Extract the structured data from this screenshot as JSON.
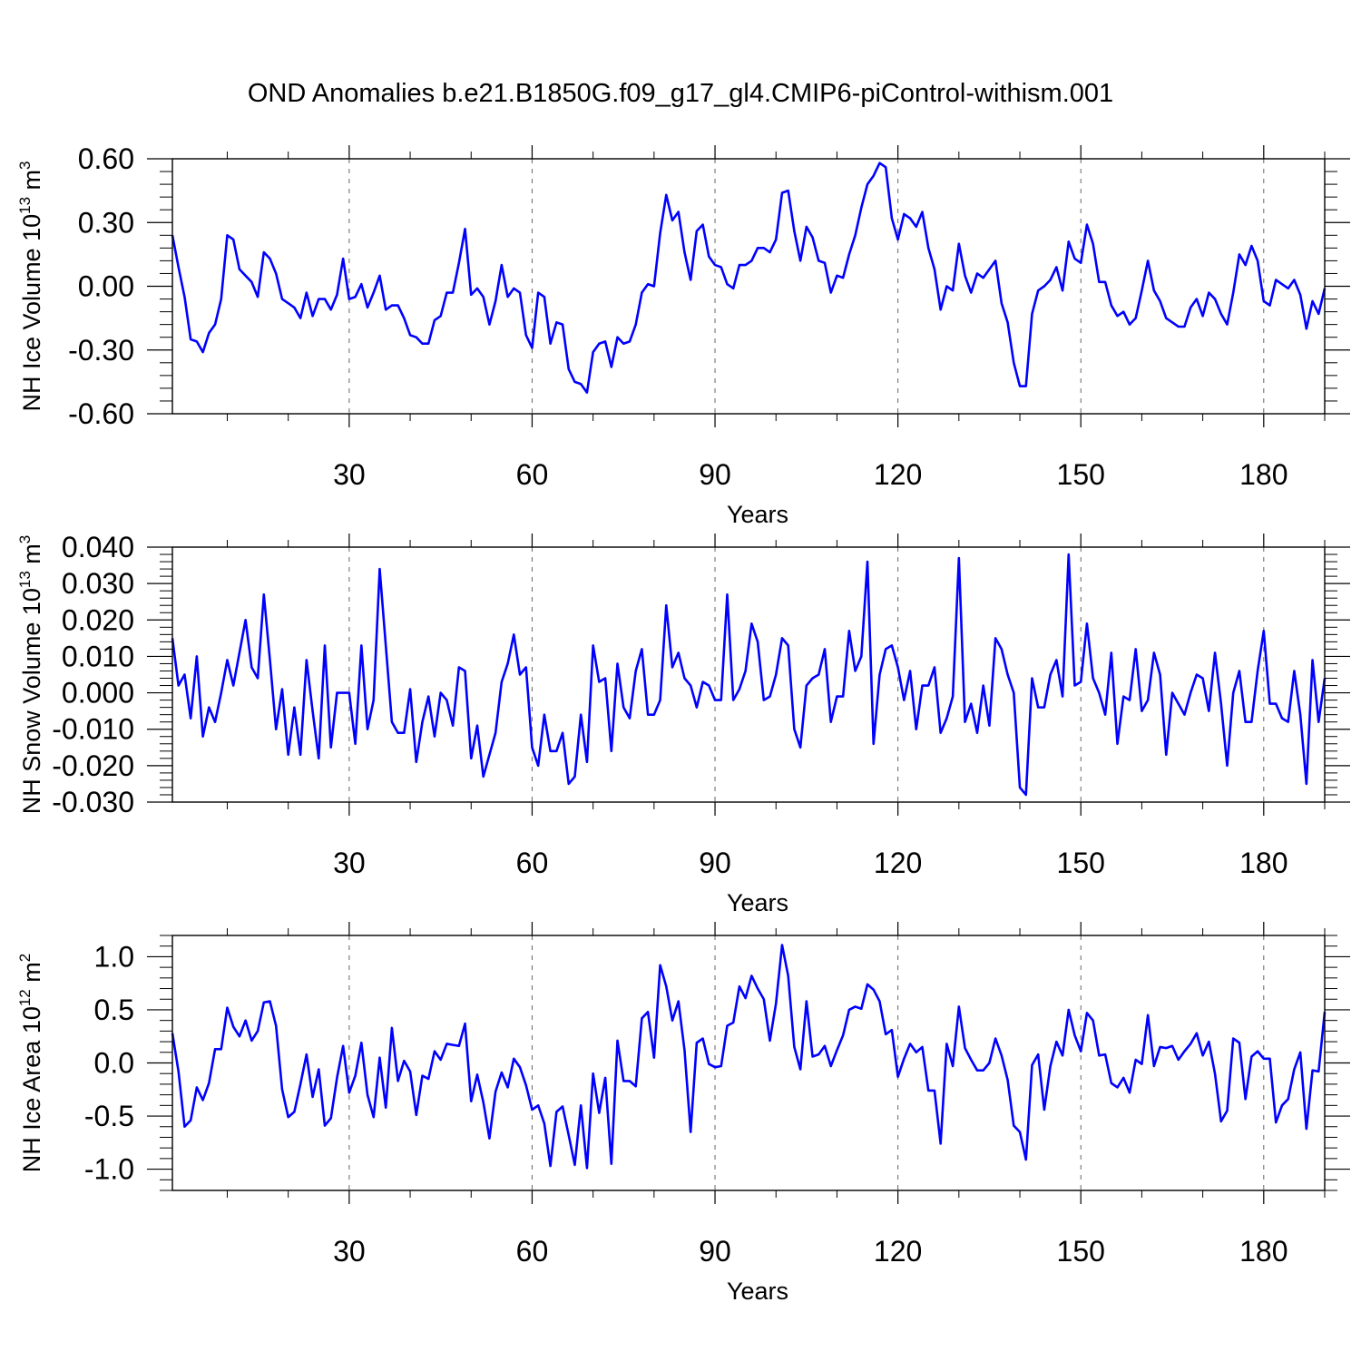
{
  "figure": {
    "title": "OND Anomalies b.e21.B1850G.f09_g17_gl4.CMIP6-piControl-withism.001"
  },
  "colors": {
    "series": "#0000ff",
    "axis": "#000000",
    "grid": "#666666"
  },
  "chart_data": [
    {
      "type": "line",
      "name": "nh-ice-volume",
      "ylabel": {
        "main": "NH Ice Volume 10",
        "exp": "13",
        "unit": " m",
        "unit_exp": "3"
      },
      "xlabel": "Years",
      "xlim": [
        1,
        190
      ],
      "ylim": [
        -0.6,
        0.6
      ],
      "xticks": [
        30,
        60,
        90,
        120,
        150,
        180
      ],
      "yticks": [
        -0.6,
        -0.3,
        0.0,
        0.3,
        0.6
      ],
      "ytick_labels": [
        "-0.60",
        "-0.30",
        "0.00",
        "0.30",
        "0.60"
      ],
      "y_minor_step": 0.06,
      "grid": "vertical-dashed",
      "series": [
        {
          "name": "NH Ice Volume",
          "values": [
            0.24,
            0.09,
            -0.05,
            -0.25,
            -0.26,
            -0.31,
            -0.22,
            -0.18,
            -0.06,
            0.24,
            0.22,
            0.08,
            0.05,
            0.02,
            -0.05,
            0.16,
            0.13,
            0.06,
            -0.06,
            -0.08,
            -0.1,
            -0.15,
            -0.03,
            -0.14,
            -0.06,
            -0.06,
            -0.11,
            -0.04,
            0.13,
            -0.06,
            -0.05,
            0.01,
            -0.1,
            -0.03,
            0.05,
            -0.11,
            -0.09,
            -0.09,
            -0.15,
            -0.23,
            -0.24,
            -0.27,
            -0.27,
            -0.16,
            -0.14,
            -0.03,
            -0.03,
            0.11,
            0.27,
            -0.04,
            -0.01,
            -0.05,
            -0.18,
            -0.07,
            0.1,
            -0.05,
            -0.01,
            -0.03,
            -0.23,
            -0.29,
            -0.03,
            -0.05,
            -0.27,
            -0.17,
            -0.18,
            -0.39,
            -0.45,
            -0.46,
            -0.5,
            -0.31,
            -0.27,
            -0.26,
            -0.38,
            -0.24,
            -0.27,
            -0.26,
            -0.18,
            -0.03,
            0.01,
            0.0,
            0.25,
            0.43,
            0.31,
            0.35,
            0.16,
            0.03,
            0.26,
            0.29,
            0.14,
            0.1,
            0.09,
            0.01,
            -0.01,
            0.1,
            0.1,
            0.12,
            0.18,
            0.18,
            0.16,
            0.22,
            0.44,
            0.45,
            0.26,
            0.12,
            0.28,
            0.23,
            0.12,
            0.11,
            -0.03,
            0.05,
            0.04,
            0.15,
            0.24,
            0.37,
            0.48,
            0.52,
            0.58,
            0.56,
            0.32,
            0.22,
            0.34,
            0.32,
            0.28,
            0.35,
            0.18,
            0.08,
            -0.11,
            0.0,
            -0.02,
            0.2,
            0.05,
            -0.03,
            0.06,
            0.04,
            0.08,
            0.12,
            -0.08,
            -0.17,
            -0.36,
            -0.47,
            -0.47,
            -0.13,
            -0.02,
            0.0,
            0.03,
            0.09,
            -0.02,
            0.21,
            0.13,
            0.11,
            0.29,
            0.2,
            0.02,
            0.02,
            -0.09,
            -0.14,
            -0.12,
            -0.18,
            -0.15,
            -0.02,
            0.12,
            -0.02,
            -0.07,
            -0.15,
            -0.17,
            -0.19,
            -0.19,
            -0.1,
            -0.06,
            -0.14,
            -0.03,
            -0.06,
            -0.13,
            -0.18,
            -0.03,
            0.15,
            0.1,
            0.19,
            0.12,
            -0.07,
            -0.09,
            0.03,
            0.01,
            -0.01,
            0.03,
            -0.04,
            -0.2,
            -0.07,
            -0.13,
            -0.01
          ]
        }
      ]
    },
    {
      "type": "line",
      "name": "nh-snow-volume",
      "ylabel": {
        "main": "NH Snow Volume 10",
        "exp": "13",
        "unit": " m",
        "unit_exp": "3"
      },
      "xlabel": "Years",
      "xlim": [
        1,
        190
      ],
      "ylim": [
        -0.03,
        0.04
      ],
      "xticks": [
        30,
        60,
        90,
        120,
        150,
        180
      ],
      "yticks": [
        -0.03,
        -0.02,
        -0.01,
        0.0,
        0.01,
        0.02,
        0.03,
        0.04
      ],
      "ytick_labels": [
        "-0.030",
        "-0.020",
        "-0.010",
        "0.000",
        "0.010",
        "0.020",
        "0.030",
        "0.040"
      ],
      "y_minor_step": 0.002,
      "grid": "vertical-dashed",
      "series": [
        {
          "name": "NH Snow Volume",
          "values": [
            0.015,
            0.002,
            0.005,
            -0.007,
            0.01,
            -0.012,
            -0.004,
            -0.008,
            0.0,
            0.009,
            0.002,
            0.011,
            0.02,
            0.007,
            0.004,
            0.027,
            0.009,
            -0.01,
            0.001,
            -0.017,
            -0.004,
            -0.017,
            0.009,
            -0.005,
            -0.018,
            0.013,
            -0.015,
            0.0,
            0.0,
            0.0,
            -0.014,
            0.013,
            -0.01,
            -0.002,
            0.034,
            0.013,
            -0.008,
            -0.011,
            -0.011,
            0.001,
            -0.019,
            -0.008,
            -0.001,
            -0.012,
            0.0,
            -0.002,
            -0.009,
            0.007,
            0.006,
            -0.018,
            -0.009,
            -0.023,
            -0.017,
            -0.011,
            0.003,
            0.008,
            0.016,
            0.005,
            0.007,
            -0.015,
            -0.02,
            -0.006,
            -0.016,
            -0.016,
            -0.011,
            -0.025,
            -0.023,
            -0.006,
            -0.019,
            0.013,
            0.003,
            0.004,
            -0.016,
            0.008,
            -0.004,
            -0.007,
            0.006,
            0.012,
            -0.006,
            -0.006,
            -0.002,
            0.024,
            0.007,
            0.011,
            0.004,
            0.002,
            -0.004,
            0.003,
            0.002,
            -0.002,
            -0.002,
            0.027,
            -0.002,
            0.001,
            0.006,
            0.019,
            0.014,
            -0.002,
            -0.001,
            0.005,
            0.015,
            0.013,
            -0.01,
            -0.015,
            0.002,
            0.004,
            0.005,
            0.012,
            -0.008,
            -0.001,
            -0.001,
            0.017,
            0.006,
            0.01,
            0.036,
            -0.014,
            0.005,
            0.012,
            0.013,
            0.007,
            -0.002,
            0.006,
            -0.01,
            0.002,
            0.002,
            0.007,
            -0.011,
            -0.007,
            -0.001,
            0.037,
            -0.008,
            -0.003,
            -0.011,
            0.002,
            -0.009,
            0.015,
            0.012,
            0.005,
            0.0,
            -0.026,
            -0.028,
            0.004,
            -0.004,
            -0.004,
            0.005,
            0.009,
            -0.001,
            0.038,
            0.002,
            0.003,
            0.019,
            0.004,
            0.0,
            -0.006,
            0.011,
            -0.014,
            -0.001,
            -0.002,
            0.012,
            -0.005,
            -0.002,
            0.011,
            0.005,
            -0.017,
            0.0,
            -0.003,
            -0.006,
            0.0,
            0.005,
            0.004,
            -0.005,
            0.011,
            -0.003,
            -0.02,
            0.0,
            0.006,
            -0.008,
            -0.008,
            0.006,
            0.017,
            -0.003,
            -0.003,
            -0.007,
            -0.008,
            0.006,
            -0.006,
            -0.025,
            0.009,
            -0.008,
            0.004
          ]
        }
      ]
    },
    {
      "type": "line",
      "name": "nh-ice-area",
      "ylabel": {
        "main": "NH Ice Area 10",
        "exp": "12",
        "unit": " m",
        "unit_exp": "2"
      },
      "xlabel": "Years",
      "xlim": [
        1,
        190
      ],
      "ylim": [
        -1.2,
        1.2
      ],
      "xticks": [
        30,
        60,
        90,
        120,
        150,
        180
      ],
      "yticks": [
        -1.0,
        -0.5,
        0.0,
        0.5,
        1.0
      ],
      "ytick_labels": [
        "-1.0",
        "-0.5",
        "0.0",
        "0.5",
        "1.0"
      ],
      "y_minor_step": 0.1,
      "grid": "vertical-dashed",
      "series": [
        {
          "name": "NH Ice Area",
          "values": [
            0.28,
            -0.08,
            -0.6,
            -0.54,
            -0.23,
            -0.35,
            -0.19,
            0.13,
            0.13,
            0.52,
            0.34,
            0.25,
            0.4,
            0.21,
            0.3,
            0.57,
            0.58,
            0.35,
            -0.25,
            -0.51,
            -0.46,
            -0.2,
            0.08,
            -0.32,
            -0.06,
            -0.59,
            -0.52,
            -0.14,
            0.16,
            -0.28,
            -0.12,
            0.19,
            -0.3,
            -0.51,
            0.05,
            -0.42,
            0.33,
            -0.17,
            0.02,
            -0.08,
            -0.49,
            -0.12,
            -0.15,
            0.11,
            0.03,
            0.18,
            0.17,
            0.16,
            0.37,
            -0.36,
            -0.11,
            -0.37,
            -0.71,
            -0.27,
            -0.09,
            -0.23,
            0.04,
            -0.04,
            -0.21,
            -0.44,
            -0.4,
            -0.57,
            -0.97,
            -0.46,
            -0.41,
            -0.68,
            -0.96,
            -0.4,
            -0.99,
            -0.1,
            -0.47,
            -0.14,
            -0.95,
            0.21,
            -0.17,
            -0.17,
            -0.22,
            0.42,
            0.48,
            0.05,
            0.92,
            0.72,
            0.4,
            0.58,
            0.12,
            -0.65,
            0.19,
            0.23,
            -0.01,
            -0.04,
            -0.03,
            0.35,
            0.38,
            0.72,
            0.61,
            0.82,
            0.7,
            0.6,
            0.21,
            0.56,
            1.11,
            0.82,
            0.15,
            -0.06,
            0.58,
            0.06,
            0.08,
            0.16,
            -0.03,
            0.12,
            0.26,
            0.5,
            0.53,
            0.51,
            0.74,
            0.69,
            0.58,
            0.27,
            0.31,
            -0.13,
            0.04,
            0.18,
            0.1,
            0.15,
            -0.26,
            -0.26,
            -0.76,
            0.18,
            -0.03,
            0.53,
            0.14,
            0.03,
            -0.07,
            -0.07,
            0.0,
            0.23,
            0.07,
            -0.16,
            -0.59,
            -0.65,
            -0.91,
            -0.02,
            0.08,
            -0.44,
            -0.03,
            0.2,
            0.07,
            0.5,
            0.26,
            0.11,
            0.47,
            0.4,
            0.07,
            0.08,
            -0.19,
            -0.23,
            -0.14,
            -0.28,
            0.03,
            -0.01,
            0.45,
            -0.03,
            0.15,
            0.14,
            0.16,
            0.03,
            0.11,
            0.18,
            0.28,
            0.07,
            0.2,
            -0.1,
            -0.55,
            -0.45,
            0.23,
            0.19,
            -0.34,
            0.06,
            0.11,
            0.04,
            0.04,
            -0.56,
            -0.4,
            -0.34,
            -0.06,
            0.1,
            -0.62,
            -0.07,
            -0.08,
            0.48
          ]
        }
      ]
    }
  ]
}
